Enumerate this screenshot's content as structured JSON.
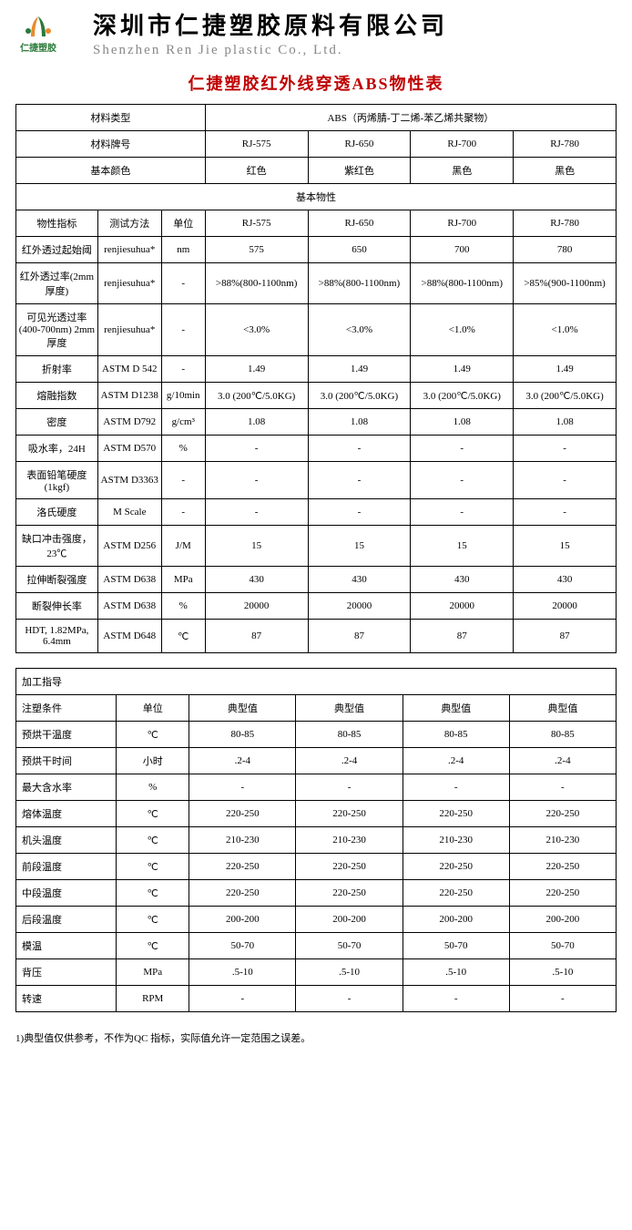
{
  "header": {
    "logo_text": "仁捷塑胶",
    "company_cn": "深圳市仁捷塑胶原料有限公司",
    "company_en": "Shenzhen Ren Jie plastic Co., Ltd."
  },
  "title": "仁捷塑胶红外线穿透ABS物性表",
  "colors": {
    "title": "#c00000",
    "logo_green": "#2b7a3a",
    "logo_orange": "#e88b2d",
    "subtitle_gray": "#888888",
    "border": "#000000",
    "bg": "#ffffff"
  },
  "top": {
    "material_type_label": "材料类型",
    "material_type_value": "ABS（丙烯腈-丁二烯-苯乙烯共聚物）",
    "material_grade_label": "材料牌号",
    "grades": [
      "RJ-575",
      "RJ-650",
      "RJ-700",
      "RJ-780"
    ],
    "base_color_label": "基本颜色",
    "base_colors": [
      "红色",
      "紫红色",
      "黑色",
      "黑色"
    ]
  },
  "props_section_label": "基本物性",
  "props_header": {
    "index": "物性指标",
    "method": "测试方法",
    "unit": "单位",
    "cols": [
      "RJ-575",
      "RJ-650",
      "RJ-700",
      "RJ-780"
    ]
  },
  "props": [
    {
      "index": "红外透过起始阈",
      "method": "renjiesuhua*",
      "unit": "nm",
      "v": [
        "575",
        "650",
        "700",
        "780"
      ]
    },
    {
      "index": "红外透过率(2mm 厚度)",
      "method": "renjiesuhua*",
      "unit": "-",
      "v": [
        ">88%(800-1100nm)",
        ">88%(800-1100nm)",
        ">88%(800-1100nm)",
        ">85%(900-1100nm)"
      ]
    },
    {
      "index": "可见光透过率(400-700nm) 2mm 厚度",
      "method": "renjiesuhua*",
      "unit": "-",
      "v": [
        "<3.0%",
        "<3.0%",
        "<1.0%",
        "<1.0%"
      ]
    },
    {
      "index": "折射率",
      "method": "ASTM D 542",
      "unit": "-",
      "v": [
        "1.49",
        "1.49",
        "1.49",
        "1.49"
      ]
    },
    {
      "index": "熔融指数",
      "method": "ASTM D1238",
      "unit": "g/10min",
      "v": [
        "3.0 (200℃/5.0KG)",
        "3.0 (200℃/5.0KG)",
        "3.0 (200℃/5.0KG)",
        "3.0 (200℃/5.0KG)"
      ]
    },
    {
      "index": "密度",
      "method": "ASTM D792",
      "unit": "g/cm³",
      "v": [
        "1.08",
        "1.08",
        "1.08",
        "1.08"
      ]
    },
    {
      "index": "吸水率，24H",
      "method": "ASTM D570",
      "unit": "%",
      "v": [
        "-",
        "-",
        "-",
        "-"
      ]
    },
    {
      "index": "表面铅笔硬度(1kgf)",
      "method": "ASTM D3363",
      "unit": "-",
      "v": [
        "-",
        "-",
        "-",
        "-"
      ]
    },
    {
      "index": "洛氏硬度",
      "method": "M Scale",
      "unit": "-",
      "v": [
        "-",
        "-",
        "-",
        "-"
      ]
    },
    {
      "index": "缺口冲击强度，23℃",
      "method": "ASTM D256",
      "unit": "J/M",
      "v": [
        "15",
        "15",
        "15",
        "15"
      ]
    },
    {
      "index": "拉伸断裂强度",
      "method": "ASTM D638",
      "unit": "MPa",
      "v": [
        "430",
        "430",
        "430",
        "430"
      ]
    },
    {
      "index": "断裂伸长率",
      "method": "ASTM D638",
      "unit": "%",
      "v": [
        "20000",
        "20000",
        "20000",
        "20000"
      ]
    },
    {
      "index": "HDT, 1.82MPa, 6.4mm",
      "method": "ASTM D648",
      "unit": "℃",
      "v": [
        "87",
        "87",
        "87",
        "87"
      ]
    }
  ],
  "proc_section_label": "加工指导",
  "proc_header": {
    "cond": "注塑条件",
    "unit": "单位",
    "cols": [
      "典型值",
      "典型值",
      "典型值",
      "典型值"
    ]
  },
  "proc": [
    {
      "cond": "预烘干温度",
      "unit": "℃",
      "v": [
        "80-85",
        "80-85",
        "80-85",
        "80-85"
      ]
    },
    {
      "cond": "预烘干时间",
      "unit": "小时",
      "v": [
        ".2-4",
        ".2-4",
        ".2-4",
        ".2-4"
      ]
    },
    {
      "cond": "最大含水率",
      "unit": "%",
      "v": [
        "-",
        "-",
        "-",
        "-"
      ]
    },
    {
      "cond": "熔体温度",
      "unit": "℃",
      "v": [
        "220-250",
        "220-250",
        "220-250",
        "220-250"
      ]
    },
    {
      "cond": "机头温度",
      "unit": "℃",
      "v": [
        "210-230",
        "210-230",
        "210-230",
        "210-230"
      ]
    },
    {
      "cond": "前段温度",
      "unit": "℃",
      "v": [
        "220-250",
        "220-250",
        "220-250",
        "220-250"
      ]
    },
    {
      "cond": "中段温度",
      "unit": "℃",
      "v": [
        "220-250",
        "220-250",
        "220-250",
        "220-250"
      ]
    },
    {
      "cond": "后段温度",
      "unit": "℃",
      "v": [
        "200-200",
        "200-200",
        "200-200",
        "200-200"
      ]
    },
    {
      "cond": "模温",
      "unit": "℃",
      "v": [
        "50-70",
        "50-70",
        "50-70",
        "50-70"
      ]
    },
    {
      "cond": "背压",
      "unit": "MPa",
      "v": [
        ".5-10",
        ".5-10",
        ".5-10",
        ".5-10"
      ]
    },
    {
      "cond": "转速",
      "unit": "RPM",
      "v": [
        "-",
        "-",
        "-",
        "-"
      ]
    }
  ],
  "footnote": "1)典型值仅供参考，不作为QC 指标，实际值允许一定范围之误差。"
}
